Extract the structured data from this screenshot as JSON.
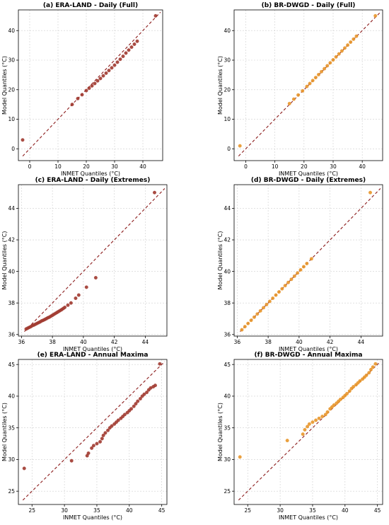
{
  "chart_data": [
    {
      "panel": "a",
      "type": "scatter",
      "title": "(a) ERA-LAND - Daily (Full)",
      "xlabel": "INMET Quantiles (°C)",
      "ylabel": "Model Quantiles (°C)",
      "xlim": [
        -4,
        47
      ],
      "ylim": [
        -4,
        47
      ],
      "xticks": [
        0,
        10,
        20,
        30,
        40
      ],
      "yticks": [
        0,
        10,
        20,
        30,
        40
      ],
      "marker_color": "#a0392f",
      "reference_line": "1:1 dashed",
      "grid": true,
      "series": [
        {
          "x": [
            -2.5,
            15,
            17,
            18.5,
            20,
            21,
            22,
            23,
            24,
            25,
            26,
            27,
            28,
            29,
            30,
            31,
            32,
            33,
            34,
            35,
            36,
            37,
            38,
            44.5
          ],
          "y": [
            3,
            15,
            17,
            18.3,
            19.7,
            20.5,
            21.3,
            22.1,
            23,
            23.8,
            24.7,
            25.6,
            26.5,
            27.4,
            28.3,
            29.3,
            30.3,
            31.3,
            32.4,
            33.4,
            34.4,
            35.4,
            36.4,
            45
          ]
        }
      ]
    },
    {
      "panel": "b",
      "type": "scatter",
      "title": "(b) BR-DWGD - Daily (Full)",
      "xlabel": "INMET Quantiles (°C)",
      "ylabel": "Model Quantiles (°C)",
      "xlim": [
        -4,
        47
      ],
      "ylim": [
        -4,
        47
      ],
      "xticks": [
        0,
        10,
        20,
        30,
        40
      ],
      "yticks": [
        0,
        10,
        20,
        30,
        40
      ],
      "marker_color": "#e8962a",
      "reference_line": "1:1 dashed",
      "grid": true,
      "series": [
        {
          "x": [
            -2,
            15,
            16.5,
            18,
            19.5,
            21,
            22,
            23,
            24,
            25,
            26,
            27,
            28,
            29,
            30,
            31,
            32,
            33,
            34,
            35,
            36,
            37,
            38,
            44.5
          ],
          "y": [
            1,
            15.3,
            16.8,
            18.2,
            19.6,
            21.1,
            22.1,
            23.1,
            24.1,
            25.1,
            26.1,
            27.1,
            28.1,
            29.1,
            30.1,
            31.1,
            32.1,
            33.1,
            34.1,
            35.1,
            36.1,
            37.1,
            38.1,
            45
          ]
        }
      ]
    },
    {
      "panel": "c",
      "type": "scatter",
      "title": "(c) ERA-LAND - Daily (Extremes)",
      "xlabel": "INMET Quantiles (°C)",
      "ylabel": "Model Quantiles (°C)",
      "xlim": [
        35.8,
        45.4
      ],
      "ylim": [
        35.9,
        45.5
      ],
      "xticks": [
        36,
        38,
        40,
        42,
        44
      ],
      "yticks": [
        36,
        38,
        40,
        42,
        44
      ],
      "marker_color": "#a0392f",
      "reference_line": "1:1 dashed",
      "grid": true,
      "series": [
        {
          "x": [
            36.3,
            36.4,
            36.5,
            36.6,
            36.7,
            36.8,
            36.9,
            37.0,
            37.1,
            37.2,
            37.3,
            37.4,
            37.5,
            37.6,
            37.7,
            37.8,
            37.9,
            38.0,
            38.1,
            38.2,
            38.3,
            38.4,
            38.5,
            38.6,
            38.7,
            38.8,
            39.0,
            39.2,
            39.5,
            39.7,
            40.2,
            40.8,
            44.6
          ],
          "y": [
            36.35,
            36.4,
            36.45,
            36.5,
            36.56,
            36.6,
            36.65,
            36.7,
            36.75,
            36.8,
            36.86,
            36.9,
            36.95,
            37.0,
            37.06,
            37.1,
            37.16,
            37.22,
            37.28,
            37.34,
            37.4,
            37.46,
            37.52,
            37.58,
            37.65,
            37.72,
            37.86,
            38.0,
            38.3,
            38.5,
            39.0,
            39.6,
            45
          ]
        }
      ]
    },
    {
      "panel": "d",
      "type": "scatter",
      "title": "(d) BR-DWGD - Daily (Extremes)",
      "xlabel": "INMET Quantiles (°C)",
      "ylabel": "Model Quantiles (°C)",
      "xlim": [
        35.8,
        45.4
      ],
      "ylim": [
        35.9,
        45.5
      ],
      "xticks": [
        36,
        38,
        40,
        42,
        44
      ],
      "yticks": [
        36,
        38,
        40,
        42,
        44
      ],
      "marker_color": "#e8962a",
      "reference_line": "1:1 dashed",
      "grid": true,
      "series": [
        {
          "x": [
            36.3,
            36.5,
            36.7,
            36.9,
            37.1,
            37.3,
            37.5,
            37.7,
            37.9,
            38.1,
            38.3,
            38.5,
            38.7,
            38.9,
            39.1,
            39.3,
            39.5,
            39.7,
            39.9,
            40.1,
            40.3,
            40.5,
            40.8,
            44.6
          ],
          "y": [
            36.3,
            36.5,
            36.7,
            36.9,
            37.1,
            37.3,
            37.5,
            37.7,
            37.9,
            38.1,
            38.3,
            38.5,
            38.7,
            38.9,
            39.1,
            39.3,
            39.5,
            39.7,
            39.9,
            40.1,
            40.3,
            40.5,
            40.8,
            45
          ]
        }
      ]
    },
    {
      "panel": "e",
      "type": "scatter",
      "title": "(e) ERA-LAND - Annual Maxima",
      "xlabel": "INMET Quantiles (°C)",
      "ylabel": "Model Quantiles (°C)",
      "xlim": [
        22.9,
        45.8
      ],
      "ylim": [
        22.9,
        45.8
      ],
      "xticks": [
        25,
        30,
        35,
        40,
        45
      ],
      "yticks": [
        25,
        30,
        35,
        40,
        45
      ],
      "marker_color": "#a0392f",
      "reference_line": "1:1 dashed",
      "grid": true,
      "series": [
        {
          "x": [
            23.8,
            31.1,
            33.5,
            33.7,
            34.2,
            34.5,
            35.0,
            35.5,
            35.8,
            36.0,
            36.3,
            36.7,
            37.0,
            37.3,
            37.7,
            38.0,
            38.3,
            38.7,
            39.0,
            39.3,
            39.7,
            40.0,
            40.3,
            40.7,
            41.0,
            41.3,
            41.7,
            42.0,
            42.3,
            42.7,
            43.0,
            43.3,
            43.7,
            44.0,
            44.7
          ],
          "y": [
            28.6,
            29.8,
            30.6,
            31.0,
            31.8,
            32.2,
            32.5,
            32.8,
            33.3,
            33.8,
            34.2,
            34.6,
            35.0,
            35.3,
            35.6,
            35.9,
            36.2,
            36.5,
            36.8,
            37.1,
            37.4,
            37.7,
            38.0,
            38.4,
            38.8,
            39.2,
            39.6,
            40.0,
            40.3,
            40.6,
            41.0,
            41.3,
            41.5,
            41.7,
            45.1
          ]
        }
      ]
    },
    {
      "panel": "f",
      "type": "scatter",
      "title": "(f) BR-DWGD - Annual Maxima",
      "xlabel": "INMET Quantiles (°C)",
      "ylabel": "Model Quantiles (°C)",
      "xlim": [
        22.9,
        45.8
      ],
      "ylim": [
        22.9,
        45.8
      ],
      "xticks": [
        25,
        30,
        35,
        40,
        45
      ],
      "yticks": [
        25,
        30,
        35,
        40,
        45
      ],
      "marker_color": "#e8962a",
      "reference_line": "1:1 dashed",
      "grid": true,
      "series": [
        {
          "x": [
            23.8,
            31.1,
            33.5,
            33.8,
            34.2,
            34.5,
            35.0,
            35.5,
            36.0,
            36.5,
            37.0,
            37.3,
            37.7,
            38.0,
            38.3,
            38.7,
            39.0,
            39.3,
            39.7,
            40.0,
            40.3,
            40.7,
            41.0,
            41.3,
            41.7,
            42.0,
            42.3,
            42.7,
            43.0,
            43.3,
            43.7,
            44.0,
            44.3,
            44.7
          ],
          "y": [
            30.4,
            33.0,
            34.0,
            34.7,
            35.2,
            35.6,
            35.9,
            36.2,
            36.5,
            36.8,
            37.1,
            37.5,
            38.0,
            38.3,
            38.6,
            38.9,
            39.2,
            39.5,
            39.8,
            40.1,
            40.4,
            40.8,
            41.2,
            41.5,
            41.8,
            42.1,
            42.4,
            42.7,
            43.0,
            43.3,
            43.7,
            44.2,
            44.6,
            45.1
          ]
        }
      ]
    }
  ]
}
